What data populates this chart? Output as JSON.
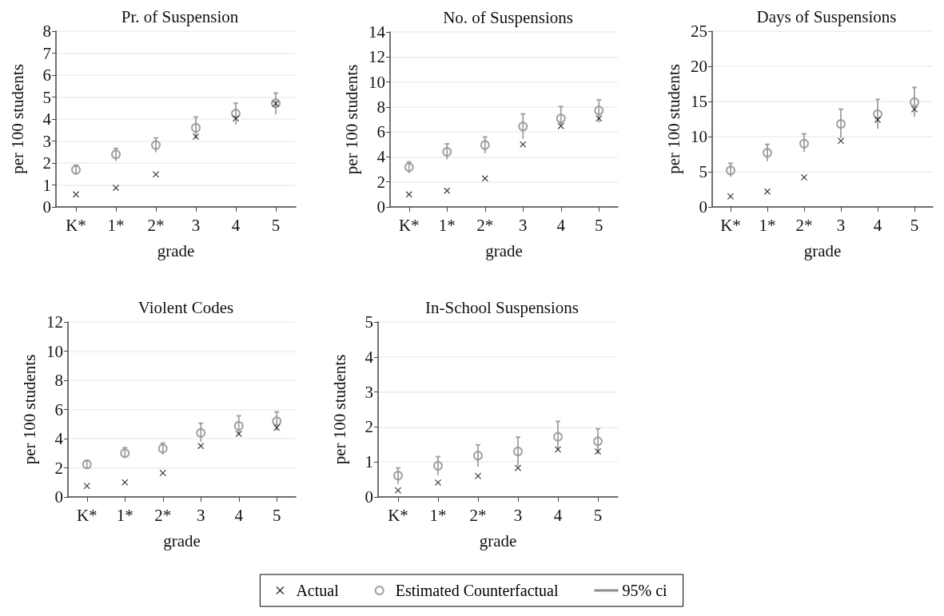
{
  "chart_data": [
    {
      "type": "scatter",
      "title": "Pr. of Suspension",
      "xlabel": "grade",
      "ylabel": "per 100 students",
      "categories": [
        "K*",
        "1*",
        "2*",
        "3",
        "4",
        "5"
      ],
      "ylim": [
        0,
        8
      ],
      "yticks": [
        0,
        1,
        2,
        3,
        4,
        5,
        6,
        7,
        8
      ],
      "grid": "y",
      "series": [
        {
          "color": "#000000",
          "marker": "cross",
          "values": [
            0.57,
            0.87,
            1.48,
            3.2,
            4.03,
            4.7
          ]
        },
        {
          "color": "#8c8c8c",
          "marker": "circle",
          "values": [
            1.69,
            2.39,
            2.82,
            3.6,
            4.25,
            4.72
          ],
          "errors": [
            [
              1.48,
              1.9
            ],
            [
              2.09,
              2.66
            ],
            [
              2.49,
              3.14
            ],
            [
              3.12,
              4.09
            ],
            [
              3.75,
              4.72
            ],
            [
              4.21,
              5.18
            ]
          ]
        }
      ]
    },
    {
      "type": "scatter",
      "title": "No. of Suspensions",
      "xlabel": "grade",
      "ylabel": "per 100 students",
      "categories": [
        "K*",
        "1*",
        "2*",
        "3",
        "4",
        "5"
      ],
      "ylim": [
        0,
        14
      ],
      "yticks": [
        0,
        2,
        4,
        6,
        8,
        10,
        12,
        14
      ],
      "grid": "y",
      "series": [
        {
          "color": "#000000",
          "marker": "cross",
          "values": [
            1.0,
            1.3,
            2.28,
            5.0,
            6.48,
            7.08
          ]
        },
        {
          "color": "#8c8c8c",
          "marker": "circle",
          "values": [
            3.18,
            4.41,
            4.95,
            6.44,
            7.08,
            7.72
          ],
          "errors": [
            [
              2.7,
              3.6
            ],
            [
              3.8,
              5.05
            ],
            [
              4.3,
              5.6
            ],
            [
              5.44,
              7.44
            ],
            [
              6.55,
              8.04
            ],
            [
              6.76,
              8.57
            ]
          ]
        }
      ]
    },
    {
      "type": "scatter",
      "title": "Days of Suspensions",
      "xlabel": "grade",
      "ylabel": "per 100 students",
      "categories": [
        "K*",
        "1*",
        "2*",
        "3",
        "4",
        "5"
      ],
      "ylim": [
        0,
        25
      ],
      "yticks": [
        0,
        5,
        10,
        15,
        20,
        25
      ],
      "grid": "y",
      "series": [
        {
          "color": "#000000",
          "marker": "cross",
          "values": [
            1.5,
            2.2,
            4.2,
            9.4,
            12.4,
            13.9
          ]
        },
        {
          "color": "#8c8c8c",
          "marker": "circle",
          "values": [
            5.2,
            7.7,
            9.0,
            11.8,
            13.2,
            14.9
          ],
          "errors": [
            [
              4.3,
              6.2
            ],
            [
              6.5,
              8.9
            ],
            [
              7.8,
              10.4
            ],
            [
              9.8,
              13.9
            ],
            [
              11.1,
              15.3
            ],
            [
              12.8,
              17.0
            ]
          ]
        }
      ]
    },
    {
      "type": "scatter",
      "title": "Violent Codes",
      "xlabel": "grade",
      "ylabel": "per 100 students",
      "categories": [
        "K*",
        "1*",
        "2*",
        "3",
        "4",
        "5"
      ],
      "ylim": [
        0,
        12
      ],
      "yticks": [
        0,
        2,
        4,
        6,
        8,
        10,
        12
      ],
      "grid": "y",
      "series": [
        {
          "color": "#000000",
          "marker": "cross",
          "values": [
            0.75,
            1.0,
            1.64,
            3.5,
            4.33,
            4.75
          ]
        },
        {
          "color": "#8c8c8c",
          "marker": "circle",
          "values": [
            2.23,
            3.0,
            3.32,
            4.4,
            4.88,
            5.19
          ],
          "errors": [
            [
              1.95,
              2.5
            ],
            [
              2.68,
              3.38
            ],
            [
              2.9,
              3.69
            ],
            [
              3.78,
              5.06
            ],
            [
              4.24,
              5.57
            ],
            [
              4.55,
              5.83
            ]
          ]
        }
      ]
    },
    {
      "type": "scatter",
      "title": "In-School Suspensions",
      "xlabel": "grade",
      "ylabel": "per 100 students",
      "categories": [
        "K*",
        "1*",
        "2*",
        "3",
        "4",
        "5"
      ],
      "ylim": [
        0,
        5
      ],
      "yticks": [
        0,
        1,
        2,
        3,
        4,
        5
      ],
      "grid": "y",
      "legend": "bottom",
      "annotations": [
        "95% ci"
      ],
      "series": [
        {
          "name": "Actual",
          "color": "#000000",
          "marker": "cross",
          "values": [
            0.19,
            0.41,
            0.6,
            0.83,
            1.36,
            1.3
          ]
        },
        {
          "name": "Estimated Counterfactual",
          "color": "#8c8c8c",
          "marker": "circle",
          "values": [
            0.61,
            0.89,
            1.18,
            1.3,
            1.72,
            1.59
          ],
          "errors": [
            [
              0.37,
              0.83
            ],
            [
              0.62,
              1.15
            ],
            [
              0.87,
              1.49
            ],
            [
              0.89,
              1.71
            ],
            [
              1.33,
              2.16
            ],
            [
              1.23,
              1.95
            ]
          ]
        }
      ]
    }
  ]
}
